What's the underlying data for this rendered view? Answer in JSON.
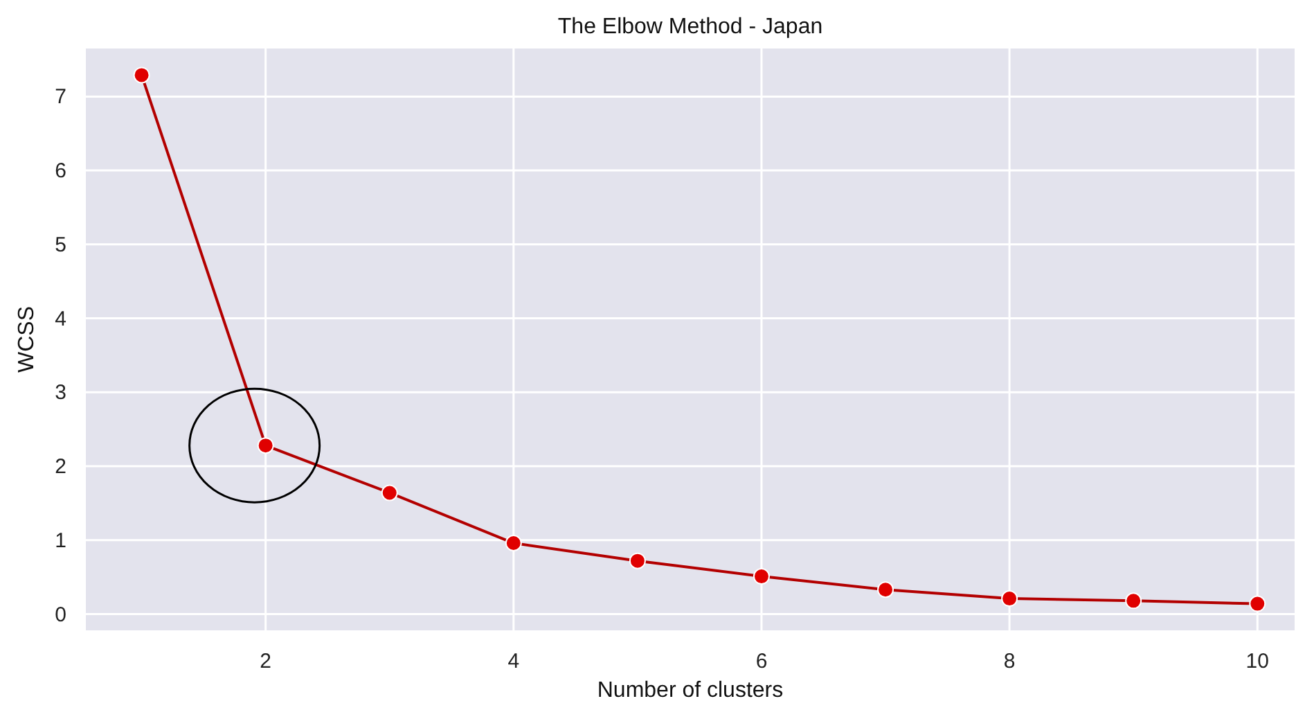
{
  "chart_data": {
    "type": "line",
    "title": "The Elbow Method - Japan",
    "xlabel": "Number of clusters",
    "ylabel": "WCSS",
    "x": [
      1,
      2,
      3,
      4,
      5,
      6,
      7,
      8,
      9,
      10
    ],
    "series": [
      {
        "color": "#b30000",
        "values": [
          7.29,
          2.28,
          1.64,
          0.96,
          0.72,
          0.51,
          0.33,
          0.21,
          0.18,
          0.14
        ]
      }
    ],
    "xlim": [
      0.55,
      10.3
    ],
    "xticks": [
      2,
      4,
      6,
      8,
      10
    ],
    "ylim": [
      -0.22,
      7.65
    ],
    "yticks": [
      0,
      1,
      2,
      3,
      4,
      5,
      6,
      7
    ],
    "grid": true,
    "marker": "circle",
    "line_style": "solid"
  }
}
